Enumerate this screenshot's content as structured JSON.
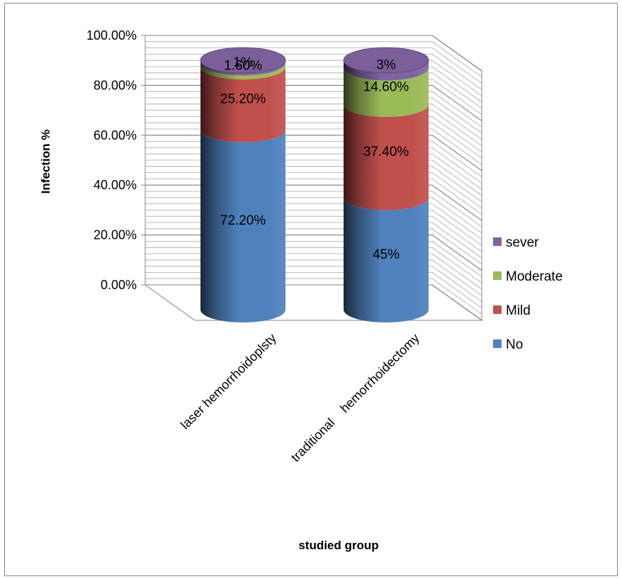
{
  "chart_data": {
    "type": "bar",
    "subtype": "stacked-3d-cylinder",
    "title": "",
    "xlabel": "studied group",
    "ylabel": "Infection %",
    "ylim": [
      0,
      100
    ],
    "y_ticks": [
      "0.00%",
      "20.00%",
      "40.00%",
      "60.00%",
      "80.00%",
      "100.00%"
    ],
    "categories": [
      "laser hemorrhoidoplsty",
      "traditional    hemorrhoidectomy"
    ],
    "series": [
      {
        "name": "No",
        "color": "#4F81BD",
        "values": [
          72.2,
          45
        ],
        "labels": [
          "72.20%",
          "45%"
        ]
      },
      {
        "name": "Mild",
        "color": "#C0504D",
        "values": [
          25.2,
          37.4
        ],
        "labels": [
          "25.20%",
          "37.40%"
        ]
      },
      {
        "name": "Moderate",
        "color": "#9BBB59",
        "values": [
          1.6,
          14.6
        ],
        "labels": [
          "1.60%",
          "14.60%"
        ]
      },
      {
        "name": "sever",
        "color": "#8064A2",
        "values": [
          1,
          3
        ],
        "labels": [
          "1%",
          "3%"
        ]
      }
    ],
    "legend_order": [
      "sever",
      "Moderate",
      "Mild",
      "No"
    ],
    "legend_position": "right",
    "grid": true
  }
}
